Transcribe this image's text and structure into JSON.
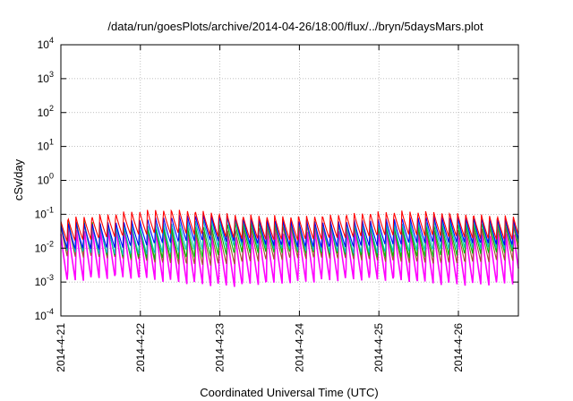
{
  "chart_data": {
    "type": "line",
    "title": "/data/run/goesPlots/archive/2014-04-26/18:00/flux/../bryn/5daysMars.plot",
    "xlabel": "Coordinated Universal Time (UTC)",
    "ylabel": "cSv/day",
    "y_scale": "log",
    "ylim": [
      0.0001,
      10000
    ],
    "xlim": [
      "2014-04-21",
      "2014-04-26 19:00"
    ],
    "grid": true,
    "x_ticks": [
      "2014-4-21",
      "2014-4-22",
      "2014-4-23",
      "2014-4-24",
      "2014-4-25",
      "2014-4-26"
    ],
    "y_ticks": [
      {
        "base": "10",
        "exp": "-4"
      },
      {
        "base": "10",
        "exp": "-3"
      },
      {
        "base": "10",
        "exp": "-2"
      },
      {
        "base": "10",
        "exp": "-1"
      },
      {
        "base": "10",
        "exp": "0"
      },
      {
        "base": "10",
        "exp": "1"
      },
      {
        "base": "10",
        "exp": "2"
      },
      {
        "base": "10",
        "exp": "3"
      },
      {
        "base": "10",
        "exp": "4"
      }
    ],
    "cycle_hours": 2.4,
    "series": [
      {
        "color": "#ff00ff",
        "peak": 0.04,
        "trough": 0.0009
      },
      {
        "color": "#a0522d",
        "peak": 0.05,
        "trough": 0.004
      },
      {
        "color": "#00c000",
        "peak": 0.06,
        "trough": 0.006
      },
      {
        "color": "#00c0c0",
        "peak": 0.07,
        "trough": 0.008
      },
      {
        "color": "#0000ff",
        "peak": 0.08,
        "trough": 0.012
      },
      {
        "color": "#ff0000",
        "peak": 0.11,
        "trough": 0.02
      }
    ]
  }
}
